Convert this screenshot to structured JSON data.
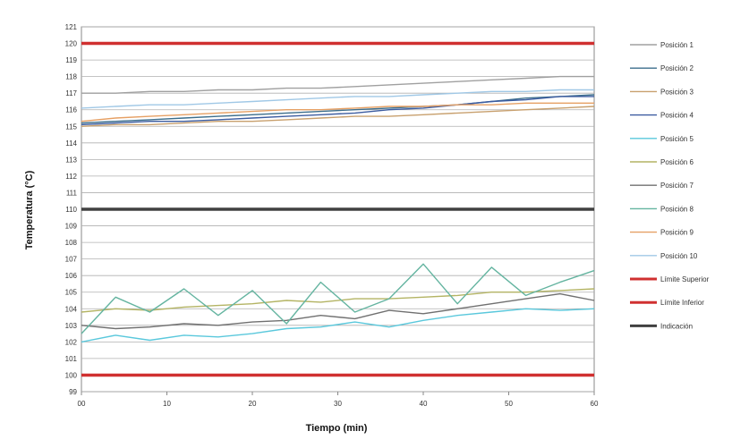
{
  "chart_data": {
    "type": "line",
    "title": "",
    "xlabel": "Tiempo (min)",
    "ylabel": "Temperatura (°C)",
    "xlim": [
      0,
      60
    ],
    "ylim": [
      99,
      121
    ],
    "x_tick_labels": [
      "00",
      "10",
      "20",
      "30",
      "40",
      "50",
      "60"
    ],
    "y_tick_labels": [
      "99",
      "100",
      "101",
      "102",
      "103",
      "104",
      "105",
      "106",
      "107",
      "108",
      "109",
      "110",
      "111",
      "112",
      "113",
      "114",
      "115",
      "116",
      "117",
      "118",
      "119",
      "120",
      "121"
    ],
    "grid": true,
    "legend_position": "right",
    "x": [
      0,
      4,
      8,
      12,
      16,
      20,
      24,
      28,
      32,
      36,
      40,
      44,
      48,
      52,
      56,
      60
    ],
    "series": [
      {
        "name": "Posición 1",
        "color": "#a0a0a0",
        "values": [
          117.0,
          117.0,
          117.1,
          117.1,
          117.2,
          117.2,
          117.3,
          117.3,
          117.4,
          117.5,
          117.6,
          117.7,
          117.8,
          117.9,
          118.0,
          118.0
        ]
      },
      {
        "name": "Posición 2",
        "color": "#3c6e8c",
        "values": [
          115.2,
          115.3,
          115.4,
          115.5,
          115.6,
          115.7,
          115.8,
          115.9,
          116.0,
          116.1,
          116.2,
          116.3,
          116.5,
          116.7,
          116.8,
          116.9
        ]
      },
      {
        "name": "Posición 3",
        "color": "#c8a06e",
        "values": [
          115.0,
          115.1,
          115.1,
          115.2,
          115.3,
          115.3,
          115.4,
          115.5,
          115.6,
          115.6,
          115.7,
          115.8,
          115.9,
          116.0,
          116.1,
          116.2
        ]
      },
      {
        "name": "Posición 4",
        "color": "#3c5ca0",
        "values": [
          115.1,
          115.2,
          115.3,
          115.3,
          115.4,
          115.5,
          115.6,
          115.7,
          115.8,
          116.0,
          116.1,
          116.3,
          116.5,
          116.6,
          116.8,
          116.8
        ]
      },
      {
        "name": "Posición 5",
        "color": "#5ac8dc",
        "values": [
          102.0,
          102.4,
          102.1,
          102.4,
          102.3,
          102.5,
          102.8,
          102.9,
          103.2,
          102.9,
          103.3,
          103.6,
          103.8,
          104.0,
          103.9,
          104.0
        ]
      },
      {
        "name": "Posición 6",
        "color": "#b4b464",
        "values": [
          103.8,
          104.0,
          103.9,
          104.1,
          104.2,
          104.3,
          104.5,
          104.4,
          104.6,
          104.6,
          104.7,
          104.8,
          105.0,
          105.0,
          105.1,
          105.2
        ]
      },
      {
        "name": "Posición 7",
        "color": "#707070",
        "values": [
          103.0,
          102.8,
          102.9,
          103.1,
          103.0,
          103.2,
          103.3,
          103.6,
          103.4,
          103.9,
          103.7,
          104.0,
          104.3,
          104.6,
          104.9,
          104.5
        ]
      },
      {
        "name": "Posición 8",
        "color": "#64b4a0",
        "values": [
          102.5,
          104.7,
          103.8,
          105.2,
          103.6,
          105.1,
          103.1,
          105.6,
          103.8,
          104.6,
          106.7,
          104.3,
          106.5,
          104.8,
          105.6,
          106.3
        ]
      },
      {
        "name": "Posición 9",
        "color": "#e6a064",
        "values": [
          115.3,
          115.5,
          115.6,
          115.7,
          115.8,
          115.9,
          116.0,
          116.0,
          116.1,
          116.2,
          116.2,
          116.3,
          116.3,
          116.4,
          116.4,
          116.4
        ]
      },
      {
        "name": "Posición 10",
        "color": "#a0c8e6",
        "values": [
          116.1,
          116.2,
          116.3,
          116.3,
          116.4,
          116.5,
          116.6,
          116.7,
          116.8,
          116.8,
          116.9,
          117.0,
          117.1,
          117.1,
          117.2,
          117.2
        ]
      },
      {
        "name": "Límite Superior",
        "color": "#d03030",
        "values": [
          120,
          120,
          120,
          120,
          120,
          120,
          120,
          120,
          120,
          120,
          120,
          120,
          120,
          120,
          120,
          120
        ]
      },
      {
        "name": "Límite Inferior",
        "color": "#d03030",
        "values": [
          100,
          100,
          100,
          100,
          100,
          100,
          100,
          100,
          100,
          100,
          100,
          100,
          100,
          100,
          100,
          100
        ]
      },
      {
        "name": "Indicación",
        "color": "#404040",
        "values": [
          110,
          110,
          110,
          110,
          110,
          110,
          110,
          110,
          110,
          110,
          110,
          110,
          110,
          110,
          110,
          110
        ]
      }
    ]
  }
}
